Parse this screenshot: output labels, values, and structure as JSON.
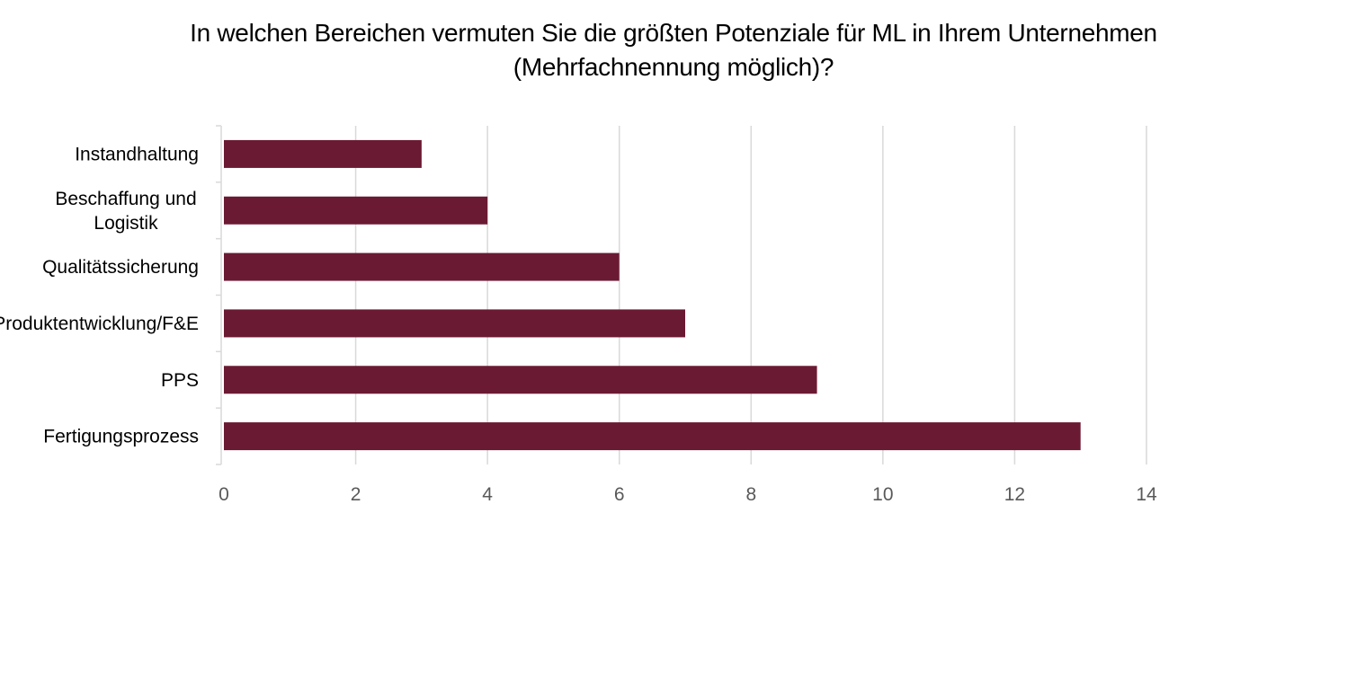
{
  "chart_data": {
    "type": "bar",
    "orientation": "horizontal",
    "title_lines": [
      "In welchen Bereichen vermuten Sie die größten Potenziale für ML in Ihrem Unternehmen",
      "(Mehrfachnennung möglich)?"
    ],
    "categories": [
      [
        "Instandhaltung"
      ],
      [
        "Beschaffung und",
        "Logistik"
      ],
      [
        "Qualitätssicherung"
      ],
      [
        "Produktentwicklung/F&E"
      ],
      [
        "PPS"
      ],
      [
        "Fertigungsprozess"
      ]
    ],
    "values": [
      3,
      4,
      6,
      7,
      9,
      13
    ],
    "xlim": [
      0,
      14
    ],
    "xticks": [
      0,
      2,
      4,
      6,
      8,
      10,
      12,
      14
    ],
    "grid": true,
    "legend": "none",
    "bar_color": "#6b1a33",
    "grid_color": "#d9d9d9",
    "axis_color": "#d9d9d9"
  }
}
